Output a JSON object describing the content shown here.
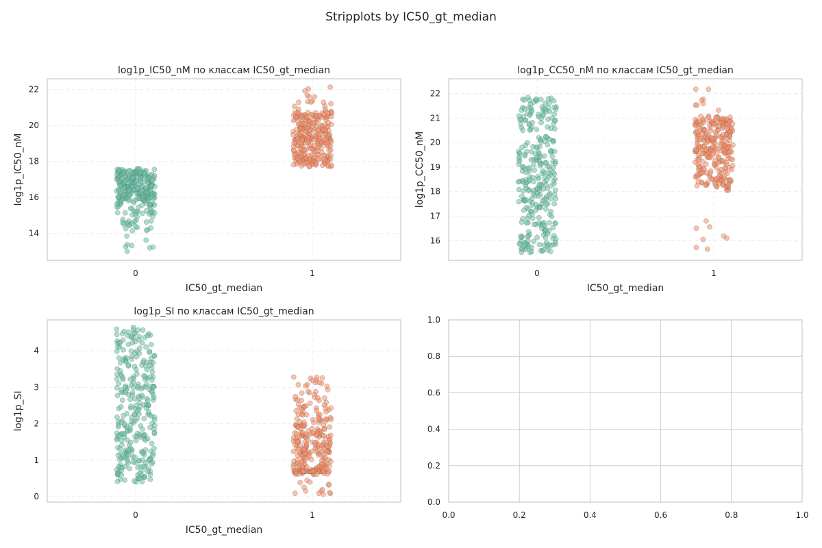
{
  "figure_title": "Stripplots by IC50_gt_median",
  "palette": {
    "class0": "#66c2a5",
    "class1": "#fc8d62",
    "edge": "#5a5a5a"
  },
  "chart_data": [
    {
      "type": "scatter",
      "subtype": "stripplot",
      "title": "log1p_IC50_nM по классам IC50_gt_median",
      "xlabel": "IC50_gt_median",
      "ylabel": "log1p_IC50_nM",
      "categories": [
        "0",
        "1"
      ],
      "ylim": [
        12.5,
        22.6
      ],
      "yticks": [
        14,
        16,
        18,
        20,
        22
      ],
      "grid": true,
      "point_opacity": 0.55,
      "series": [
        {
          "category": "0",
          "n": 300,
          "min": 12.95,
          "max": 17.6,
          "median": 16.5,
          "dense_min": 14.1
        },
        {
          "category": "1",
          "n": 300,
          "min": 17.7,
          "max": 22.2,
          "median": 19.3,
          "dense_min": 17.7,
          "dense_max": 20.8
        }
      ]
    },
    {
      "type": "scatter",
      "subtype": "stripplot",
      "title": "log1p_CC50_nM по классам IC50_gt_median",
      "xlabel": "IC50_gt_median",
      "ylabel": "log1p_CC50_nM",
      "categories": [
        "0",
        "1"
      ],
      "ylim": [
        15.2,
        22.6
      ],
      "yticks": [
        16,
        17,
        18,
        19,
        20,
        21,
        22
      ],
      "grid": true,
      "point_opacity": 0.55,
      "series": [
        {
          "category": "0",
          "n": 300,
          "min": 15.5,
          "max": 21.9,
          "median": 18.6
        },
        {
          "category": "1",
          "n": 300,
          "min": 15.6,
          "max": 22.2,
          "median": 20.2,
          "dense_min": 18.0,
          "dense_max": 21.0
        }
      ]
    },
    {
      "type": "scatter",
      "subtype": "stripplot",
      "title": "log1p_SI по классам IC50_gt_median",
      "xlabel": "IC50_gt_median",
      "ylabel": "log1p_SI",
      "categories": [
        "0",
        "1"
      ],
      "ylim": [
        -0.15,
        4.85
      ],
      "yticks": [
        0,
        1,
        2,
        3,
        4
      ],
      "grid": true,
      "point_opacity": 0.55,
      "series": [
        {
          "category": "0",
          "n": 300,
          "min": 0.4,
          "max": 4.65,
          "median": 2.6
        },
        {
          "category": "1",
          "n": 300,
          "min": 0.05,
          "max": 3.8,
          "median": 1.2,
          "floor_value": 0.69
        }
      ]
    },
    {
      "type": "empty",
      "title": "",
      "xlim": [
        0,
        1
      ],
      "ylim": [
        0,
        1
      ],
      "xticks": [
        "0.0",
        "0.2",
        "0.4",
        "0.6",
        "0.8",
        "1.0"
      ],
      "yticks": [
        "0.0",
        "0.2",
        "0.4",
        "0.6",
        "0.8",
        "1.0"
      ],
      "grid": true
    }
  ]
}
